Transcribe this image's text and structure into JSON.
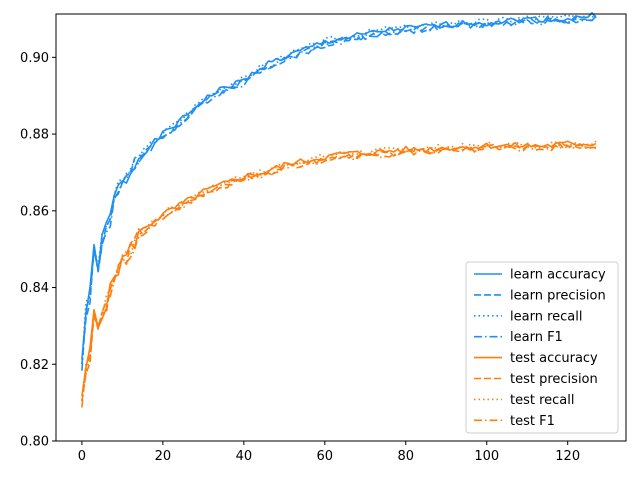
{
  "chart_data": {
    "type": "line",
    "title": "",
    "xlabel": "",
    "ylabel": "",
    "xlim": [
      -6.4,
      134.4
    ],
    "ylim": [
      0.8,
      0.9113
    ],
    "xticks": [
      0,
      20,
      40,
      60,
      80,
      100,
      120
    ],
    "yticks": [
      0.8,
      0.82,
      0.84,
      0.86,
      0.88,
      0.9
    ],
    "xtick_labels": [
      "0",
      "20",
      "40",
      "60",
      "80",
      "100",
      "120"
    ],
    "ytick_labels": [
      "0.80",
      "0.82",
      "0.84",
      "0.86",
      "0.88",
      "0.90"
    ],
    "grid": false,
    "legend_position": "lower-right",
    "colors": {
      "learn": "#1f8ff2",
      "test": "#ff7f0e"
    },
    "n_points": 128,
    "keyframes": {
      "learn": [
        [
          0,
          0.821
        ],
        [
          1,
          0.834
        ],
        [
          2,
          0.838
        ],
        [
          3,
          0.85
        ],
        [
          4,
          0.846
        ],
        [
          5,
          0.852
        ],
        [
          6,
          0.856
        ],
        [
          7,
          0.858
        ],
        [
          8,
          0.864
        ],
        [
          10,
          0.867
        ],
        [
          12,
          0.87
        ],
        [
          14,
          0.874
        ],
        [
          16,
          0.876
        ],
        [
          20,
          0.88
        ],
        [
          25,
          0.884
        ],
        [
          30,
          0.889
        ],
        [
          35,
          0.892
        ],
        [
          40,
          0.894
        ],
        [
          45,
          0.898
        ],
        [
          50,
          0.9
        ],
        [
          55,
          0.902
        ],
        [
          60,
          0.904
        ],
        [
          65,
          0.905
        ],
        [
          70,
          0.906
        ],
        [
          75,
          0.907
        ],
        [
          80,
          0.9075
        ],
        [
          85,
          0.908
        ],
        [
          90,
          0.9085
        ],
        [
          95,
          0.909
        ],
        [
          100,
          0.909
        ],
        [
          105,
          0.9095
        ],
        [
          110,
          0.91
        ],
        [
          115,
          0.91
        ],
        [
          120,
          0.91
        ],
        [
          127,
          0.911
        ]
      ],
      "test": [
        [
          0,
          0.81
        ],
        [
          1,
          0.819
        ],
        [
          2,
          0.823
        ],
        [
          3,
          0.834
        ],
        [
          4,
          0.83
        ],
        [
          5,
          0.834
        ],
        [
          6,
          0.836
        ],
        [
          7,
          0.839
        ],
        [
          8,
          0.843
        ],
        [
          10,
          0.847
        ],
        [
          12,
          0.85
        ],
        [
          14,
          0.854
        ],
        [
          16,
          0.856
        ],
        [
          20,
          0.859
        ],
        [
          25,
          0.862
        ],
        [
          30,
          0.865
        ],
        [
          35,
          0.867
        ],
        [
          40,
          0.869
        ],
        [
          45,
          0.87
        ],
        [
          50,
          0.872
        ],
        [
          55,
          0.873
        ],
        [
          60,
          0.874
        ],
        [
          65,
          0.875
        ],
        [
          70,
          0.875
        ],
        [
          75,
          0.8755
        ],
        [
          80,
          0.876
        ],
        [
          85,
          0.876
        ],
        [
          90,
          0.8765
        ],
        [
          95,
          0.8765
        ],
        [
          100,
          0.877
        ],
        [
          105,
          0.877
        ],
        [
          110,
          0.877
        ],
        [
          115,
          0.877
        ],
        [
          120,
          0.8775
        ],
        [
          127,
          0.8775
        ]
      ]
    },
    "series": [
      {
        "name": "learn accuracy",
        "group": "learn",
        "dash": "solid",
        "seed": 1,
        "offset": 0.0
      },
      {
        "name": "learn precision",
        "group": "learn",
        "dash": "dashed",
        "seed": 2,
        "offset": -0.0005
      },
      {
        "name": "learn recall",
        "group": "learn",
        "dash": "dotted",
        "seed": 3,
        "offset": 0.0003
      },
      {
        "name": "learn F1",
        "group": "learn",
        "dash": "dashdot",
        "seed": 4,
        "offset": -0.0007
      },
      {
        "name": "test accuracy",
        "group": "test",
        "dash": "solid",
        "seed": 5,
        "offset": 0.0
      },
      {
        "name": "test precision",
        "group": "test",
        "dash": "dashed",
        "seed": 6,
        "offset": -0.0006
      },
      {
        "name": "test recall",
        "group": "test",
        "dash": "dotted",
        "seed": 7,
        "offset": 0.0002
      },
      {
        "name": "test F1",
        "group": "test",
        "dash": "dashdot",
        "seed": 8,
        "offset": -0.0008
      }
    ]
  }
}
